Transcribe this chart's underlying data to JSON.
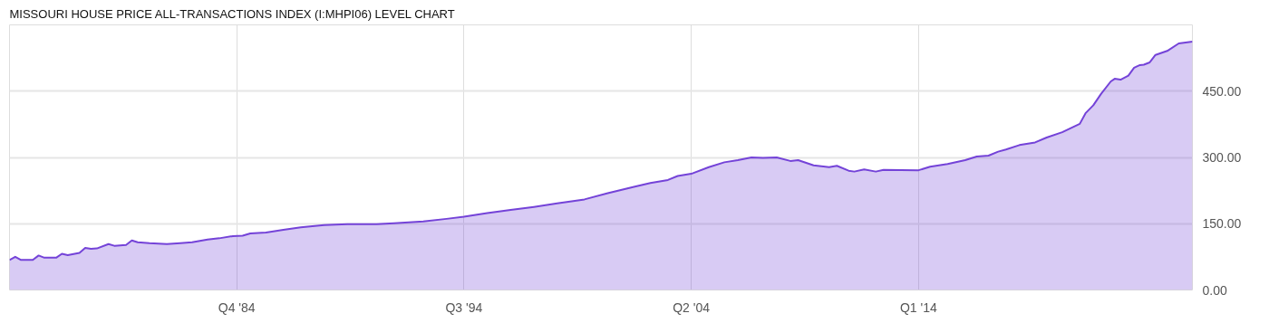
{
  "chart_data": {
    "type": "area",
    "title": "MISSOURI HOUSE PRICE ALL-TRANSACTIONS INDEX (I:MHPI06) LEVEL CHART",
    "x": [
      "1975-01",
      "1975-04",
      "1975-07",
      "1976-01",
      "1976-04",
      "1976-07",
      "1977-01",
      "1977-04",
      "1977-07",
      "1978-01",
      "1978-04",
      "1978-07",
      "1978-10",
      "1979-04",
      "1979-07",
      "1980-01",
      "1980-04",
      "1980-07",
      "1981-01",
      "1981-10",
      "1982-05",
      "1982-11",
      "1983-07",
      "1984-01",
      "1984-08",
      "1985-01",
      "1985-05",
      "1986-01",
      "1986-10",
      "1987-07",
      "1988-07",
      "1989-07",
      "1990-10",
      "1991-07",
      "1992-10",
      "1993-10",
      "1994-07",
      "1995-07",
      "1996-07",
      "1997-07",
      "1998-07",
      "1999-09",
      "2000-09",
      "2001-10",
      "2002-07",
      "2003-04",
      "2003-09",
      "2004-04",
      "2005-01",
      "2005-09",
      "2006-04",
      "2006-11",
      "2007-05",
      "2007-12",
      "2008-07",
      "2008-11",
      "2009-07",
      "2010-03",
      "2010-07",
      "2011-01",
      "2011-04",
      "2011-09",
      "2012-03",
      "2012-07",
      "2014-01",
      "2014-07",
      "2015-04",
      "2016-01",
      "2016-07",
      "2017-01",
      "2017-06",
      "2017-10",
      "2018-05",
      "2019-01",
      "2019-07",
      "2020-03",
      "2020-12",
      "2021-03",
      "2021-07",
      "2021-11",
      "2022-04",
      "2022-06",
      "2022-09",
      "2023-01",
      "2023-04",
      "2023-07",
      "2023-09",
      "2023-12",
      "2024-03",
      "2024-09",
      "2025-03",
      "2025-10"
    ],
    "series": [
      {
        "color": "#7443d8",
        "values": [
          68,
          75,
          68,
          68,
          78,
          73,
          73,
          82,
          79,
          84,
          95,
          93,
          94,
          104,
          100,
          102,
          112,
          108,
          106,
          104,
          106,
          108,
          114,
          117,
          122,
          123,
          128,
          130,
          136,
          142,
          147,
          149,
          149,
          151,
          155,
          161,
          166,
          174,
          181,
          188,
          196,
          205,
          219,
          233,
          242,
          249,
          258,
          263,
          278,
          289,
          294,
          300,
          299,
          300,
          292,
          294,
          282,
          278,
          281,
          270,
          268,
          273,
          268,
          272,
          271,
          279,
          285,
          294,
          302,
          304,
          313,
          318,
          328,
          334,
          345,
          357,
          376,
          400,
          418,
          444,
          472,
          478,
          476,
          485,
          503,
          509,
          510,
          515,
          532,
          541,
          558,
          562
        ]
      }
    ],
    "xlim": [
      "1975-01",
      "2025-10"
    ],
    "xticks": [
      {
        "value": "1984-10",
        "label": "Q4 '84"
      },
      {
        "value": "1994-07",
        "label": "Q3 '94"
      },
      {
        "value": "2004-04",
        "label": "Q2 '04"
      },
      {
        "value": "2014-01",
        "label": "Q1 '14"
      }
    ],
    "ylim": [
      0,
      600
    ],
    "yticks": [
      {
        "value": 0,
        "label": "0.00"
      },
      {
        "value": 150,
        "label": "150.00"
      },
      {
        "value": 300,
        "label": "300.00"
      },
      {
        "value": 450,
        "label": "450.00"
      }
    ],
    "grid": true
  }
}
